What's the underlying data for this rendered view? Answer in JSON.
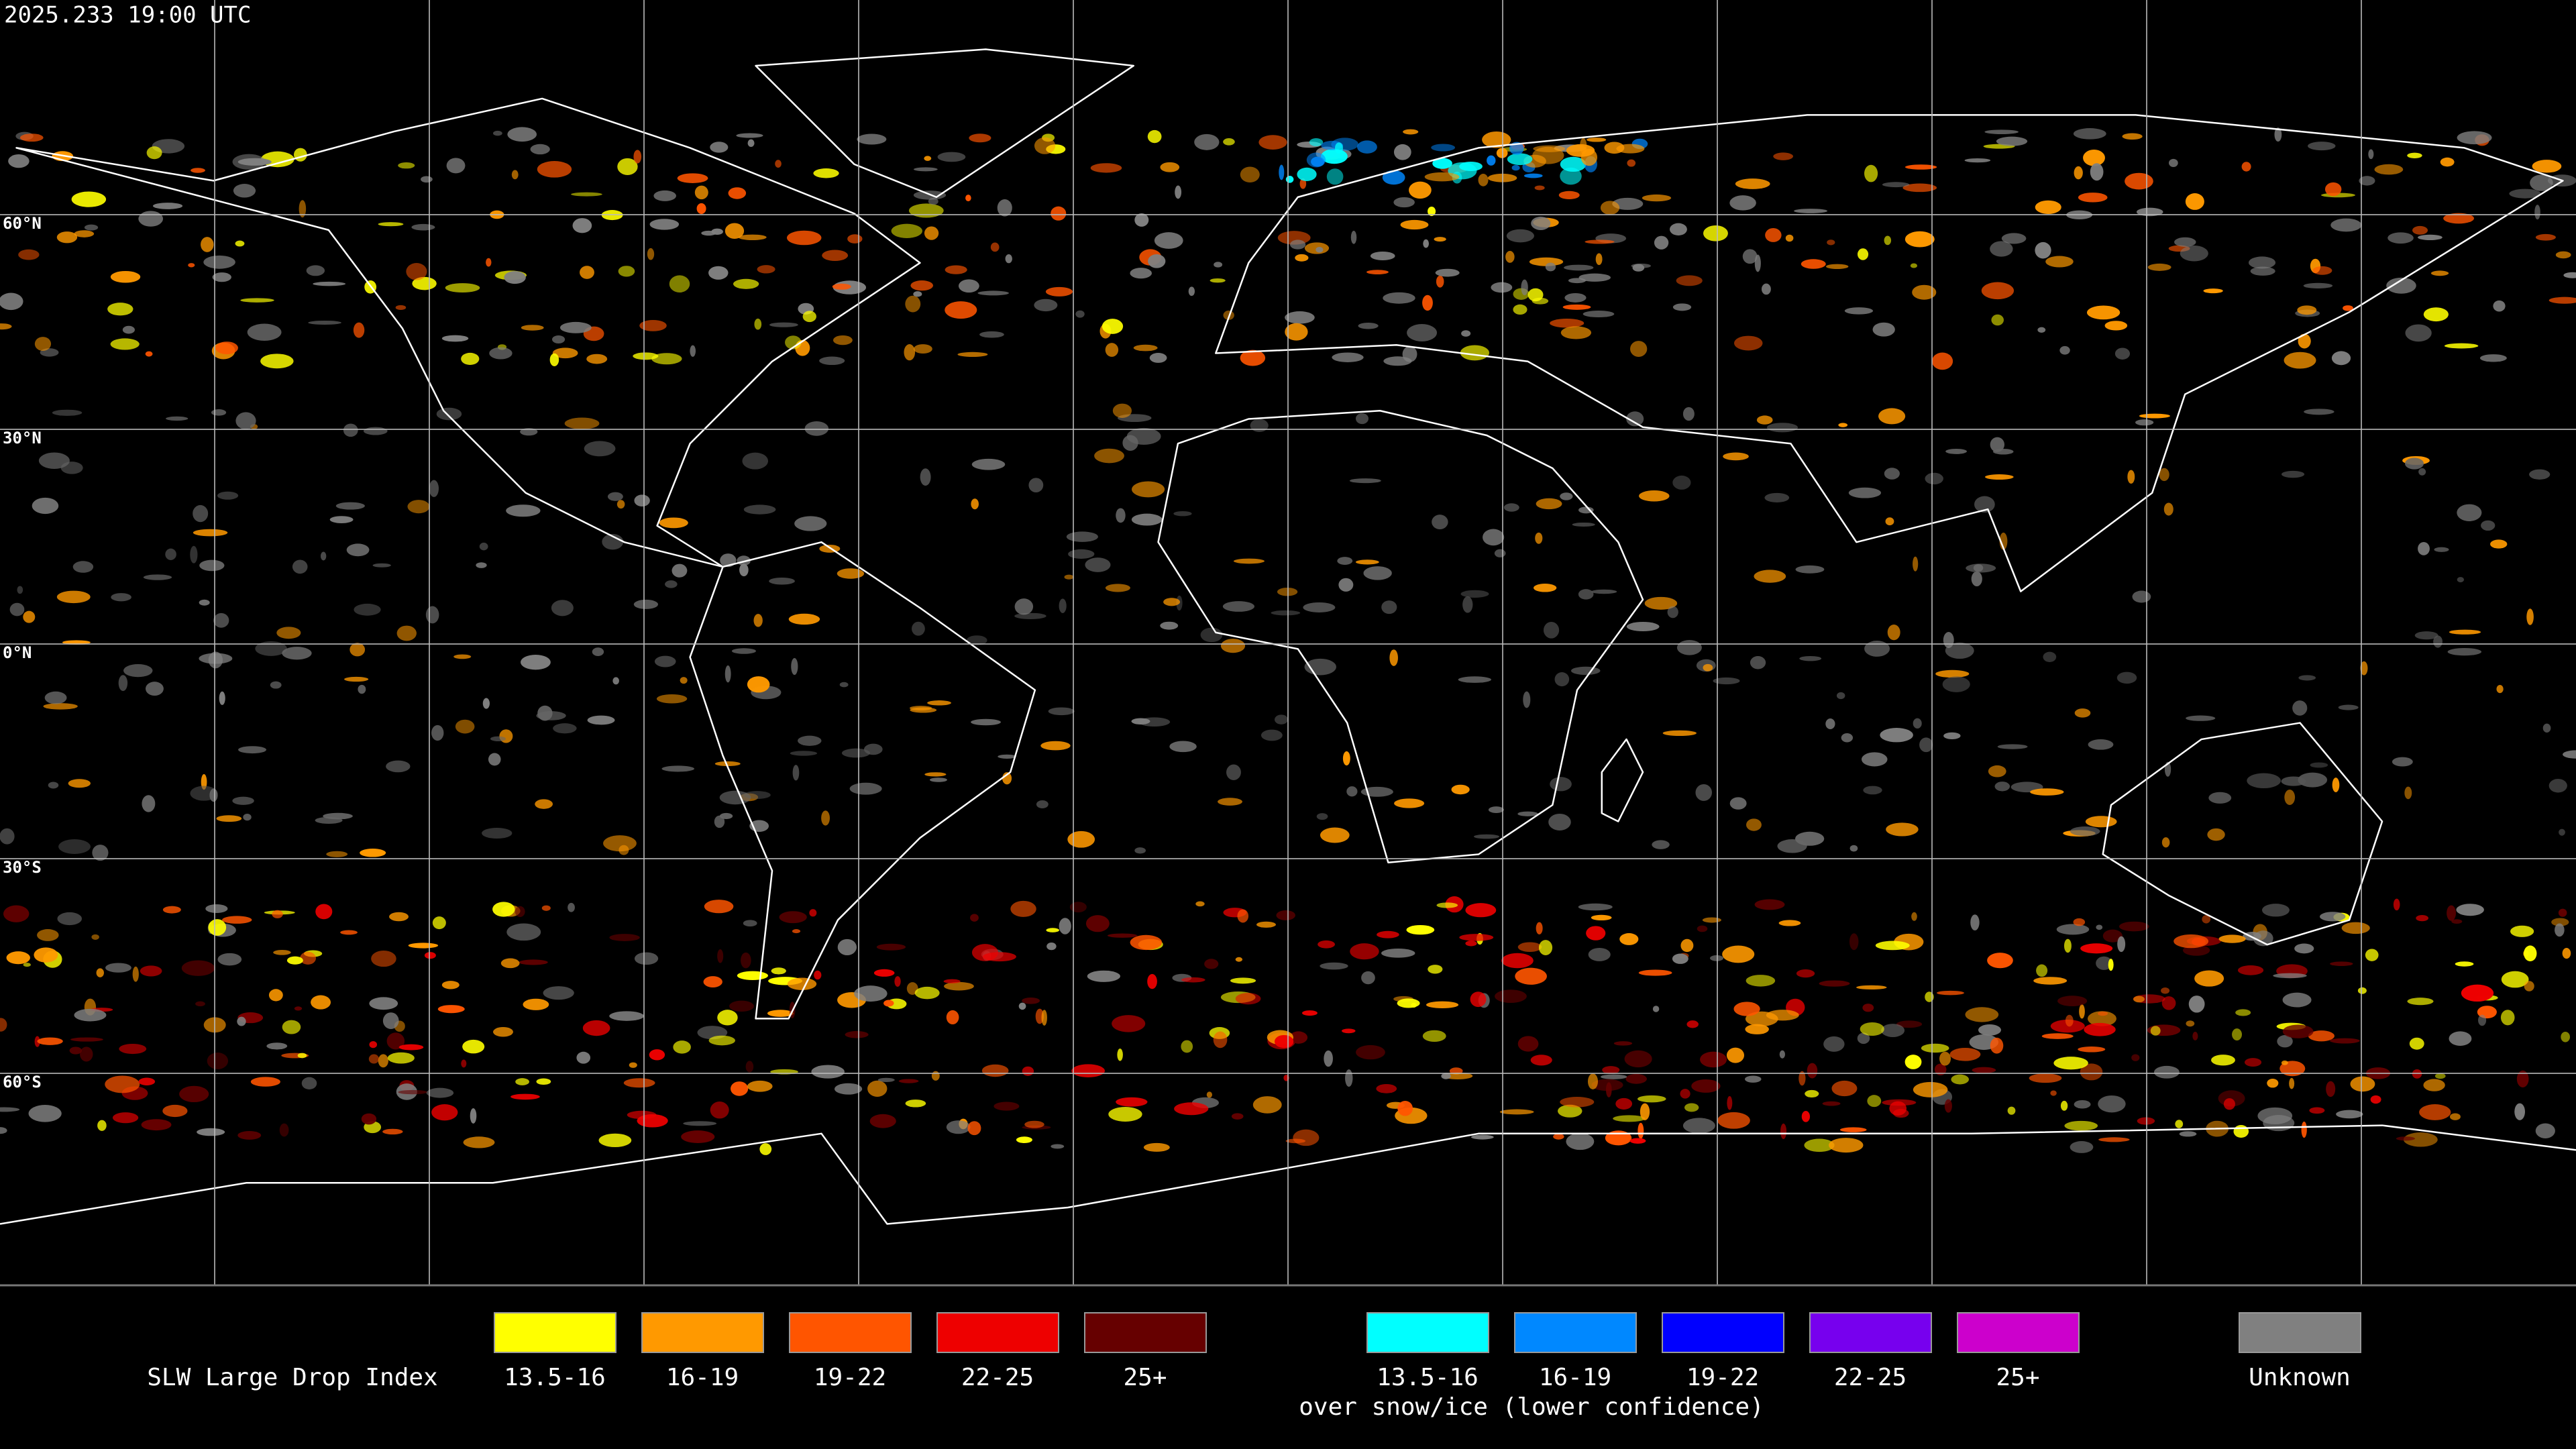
{
  "header": {
    "timestamp": "2025.233 19:00 UTC"
  },
  "map": {
    "latitude_labels": [
      "60°N",
      "30°N",
      "0°N",
      "30°S",
      "60°S"
    ]
  },
  "legend": {
    "title": "SLW Large Drop Index",
    "items": [
      {
        "label": "13.5-16",
        "color": "#ffff00"
      },
      {
        "label": "16-19",
        "color": "#ff9900"
      },
      {
        "label": "19-22",
        "color": "#ff5500"
      },
      {
        "label": "22-25",
        "color": "#ee0000"
      },
      {
        "label": "25+",
        "color": "#660000"
      }
    ],
    "snow_items": [
      {
        "label": "13.5-16",
        "color": "#00ffff"
      },
      {
        "label": "16-19",
        "color": "#0088ff"
      },
      {
        "label": "19-22",
        "color": "#0000ff"
      },
      {
        "label": "22-25",
        "color": "#7700ee"
      },
      {
        "label": "25+",
        "color": "#cc00cc"
      }
    ],
    "snow_caption": "over snow/ice (lower confidence)",
    "unknown": {
      "label": "Unknown",
      "color": "#808080"
    }
  }
}
